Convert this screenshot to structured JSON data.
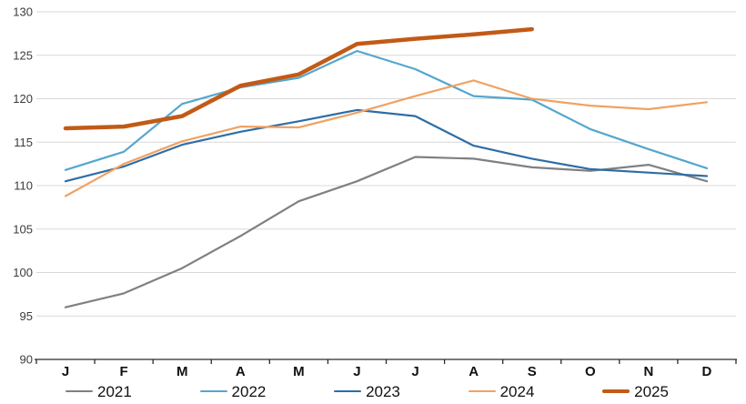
{
  "chart_data": {
    "type": "line",
    "title": "",
    "xlabel": "",
    "ylabel": "",
    "x_categories": [
      "J",
      "F",
      "M",
      "A",
      "M",
      "J",
      "J",
      "A",
      "S",
      "O",
      "N",
      "D"
    ],
    "y_ticks": [
      90,
      95,
      100,
      105,
      110,
      115,
      120,
      125,
      130
    ],
    "ylim": [
      90,
      130
    ],
    "grid": true,
    "legend_position": "bottom",
    "gridline_color": "#d9d9d9",
    "axis_color": "#2b2b2b",
    "series": [
      {
        "name": "2021",
        "color": "#808080",
        "stroke_width": 2.2,
        "values": [
          96.0,
          97.6,
          100.5,
          104.2,
          108.2,
          110.5,
          113.3,
          113.1,
          112.1,
          111.7,
          112.4,
          110.5
        ]
      },
      {
        "name": "2022",
        "color": "#54a6ce",
        "stroke_width": 2.2,
        "values": [
          111.8,
          113.9,
          119.4,
          121.3,
          122.4,
          125.5,
          123.4,
          120.3,
          119.9,
          116.5,
          114.2,
          112.0
        ]
      },
      {
        "name": "2023",
        "color": "#2e6da6",
        "stroke_width": 2.2,
        "values": [
          110.5,
          112.2,
          114.7,
          116.2,
          117.4,
          118.7,
          118.0,
          114.6,
          113.1,
          111.9,
          111.5,
          111.1
        ]
      },
      {
        "name": "2024",
        "color": "#f0a263",
        "stroke_width": 2.2,
        "values": [
          108.8,
          112.5,
          115.1,
          116.8,
          116.7,
          118.4,
          120.3,
          122.1,
          120.0,
          119.2,
          118.8,
          119.6
        ]
      },
      {
        "name": "2025",
        "color": "#c25a16",
        "stroke_width": 4.5,
        "values": [
          116.6,
          116.8,
          118.0,
          121.5,
          122.8,
          126.3,
          126.9,
          127.4,
          128.0
        ]
      }
    ]
  }
}
